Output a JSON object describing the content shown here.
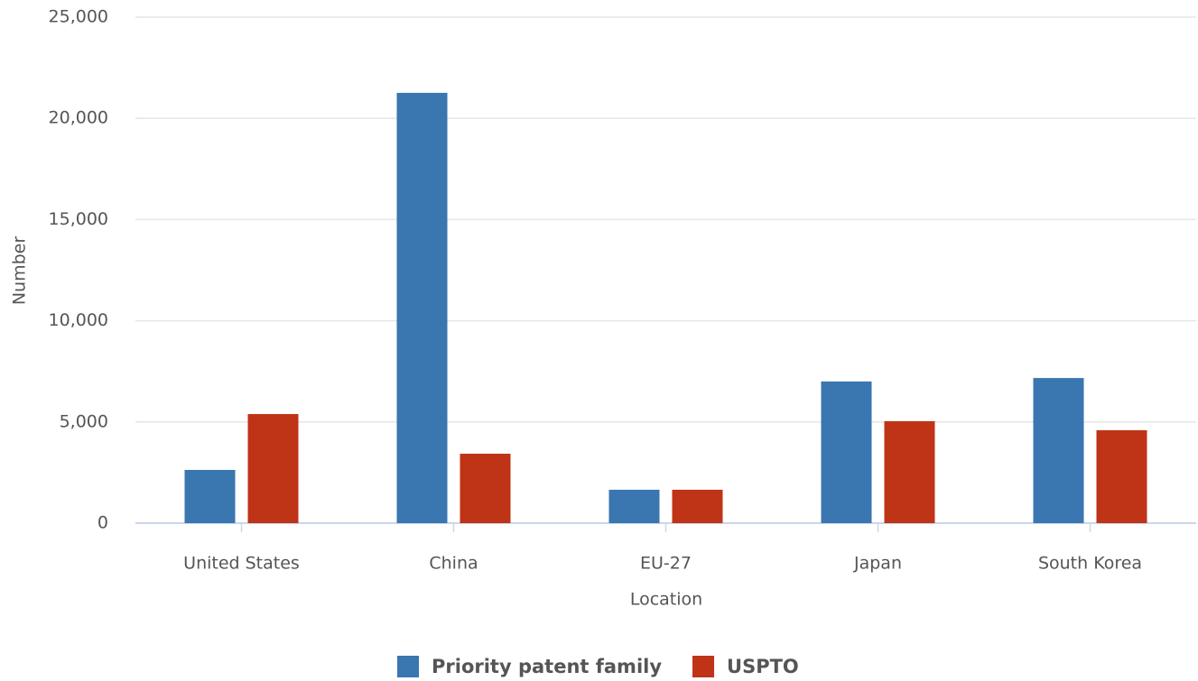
{
  "chart_data": {
    "type": "bar",
    "x_label": "Location",
    "y_label": "Number",
    "categories": [
      "United States",
      "China",
      "EU-27",
      "Japan",
      "South Korea"
    ],
    "series": [
      {
        "name": "Priority patent family",
        "color": "#3a76b0",
        "values": [
          2630,
          21260,
          1650,
          7000,
          7170
        ]
      },
      {
        "name": "USPTO",
        "color": "#bf3317",
        "values": [
          5390,
          3430,
          1650,
          5040,
          4590
        ]
      }
    ],
    "ylim": [
      0,
      25000
    ],
    "yticks": [
      0,
      {
        "value": 5000,
        "label": "5,000"
      },
      {
        "value": 10000,
        "label": "10,000"
      },
      {
        "value": 15000,
        "label": "15,000"
      },
      {
        "value": 20000,
        "label": "20,000"
      },
      {
        "value": 25000,
        "label": "25,000"
      }
    ],
    "grid": true,
    "legend": "bottom"
  }
}
